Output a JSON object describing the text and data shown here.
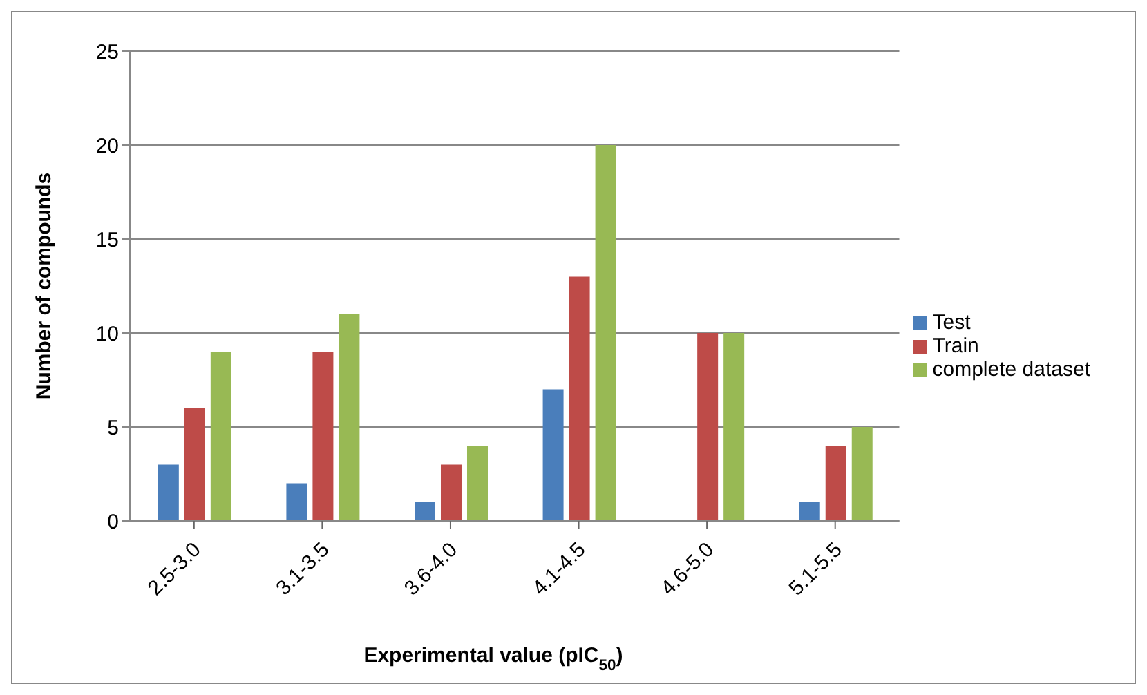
{
  "chart_data": {
    "type": "bar",
    "xlabel": "Experimental value (pIC$_{50}$)",
    "ylabel": "Number of compounds",
    "categories": [
      "2.5-3.0",
      "3.1-3.5",
      "3.6-4.0",
      "4.1-4.5",
      "4.6-5.0",
      "5.1-5.5"
    ],
    "series": [
      {
        "name": "Test",
        "color": "#4a7ebb",
        "values": [
          3,
          2,
          1,
          7,
          0,
          1
        ]
      },
      {
        "name": "Train",
        "color": "#be4b48",
        "values": [
          6,
          9,
          3,
          13,
          10,
          4
        ]
      },
      {
        "name": "complete dataset",
        "color": "#98b954",
        "values": [
          9,
          11,
          4,
          20,
          10,
          5
        ]
      }
    ],
    "ylim": [
      0,
      25
    ],
    "yticks": [
      0,
      5,
      10,
      15,
      20,
      25
    ],
    "grid": "y",
    "legend": "right"
  }
}
